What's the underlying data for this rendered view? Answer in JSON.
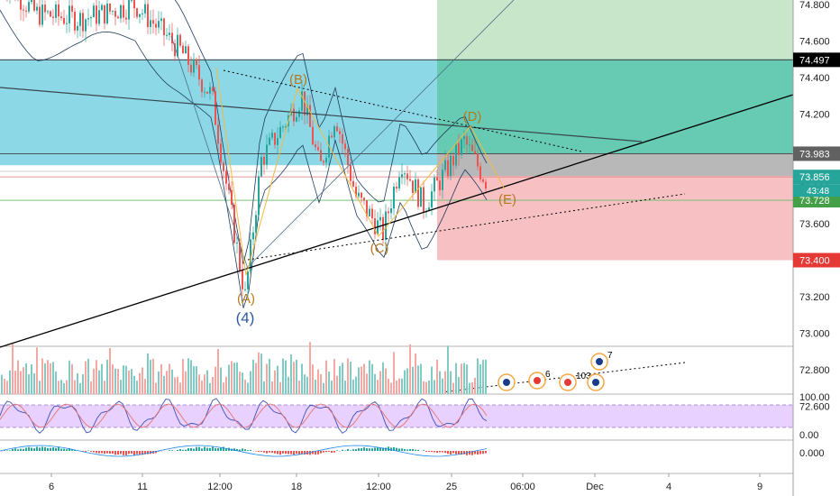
{
  "chart_data": {
    "type": "candlestick",
    "title": "",
    "xlabel": "",
    "ylabel": "",
    "ylim": [
      72.4,
      74.8
    ],
    "y_ticks": [
      "74.800",
      "74.600",
      "74.400",
      "74.200",
      "74.000",
      "73.800",
      "73.600",
      "73.400",
      "73.200",
      "73.000",
      "72.800",
      "72.600"
    ],
    "x_ticks": [
      "6",
      "11",
      "12:00",
      "18",
      "12:00",
      "25",
      "06:00",
      "Dec",
      "4",
      "9"
    ],
    "price_labels": {
      "stop": "74.497",
      "level": "73.983",
      "last": "73.856",
      "countdown": "43:48",
      "entry": "73.728",
      "target": "73.400"
    },
    "wave_labels": [
      "(A)",
      "(4)",
      "(B)",
      "(C)",
      "(D)",
      "(E)"
    ],
    "wave_points": [
      {
        "label": "(A)",
        "date": "Nov 16",
        "price": 73.2
      },
      {
        "label": "(B)",
        "date": "Nov 18",
        "price": 74.35
      },
      {
        "label": "(C)",
        "date": "Nov 23",
        "price": 73.52
      },
      {
        "label": "(D)",
        "date": "Nov 26",
        "price": 74.08
      },
      {
        "label": "(E)",
        "date": "Nov 27",
        "price": 73.7
      }
    ],
    "zones": [
      {
        "name": "supply",
        "from": 73.92,
        "to": 74.5,
        "color": "#5bc8d9"
      },
      {
        "name": "profit",
        "from": 73.983,
        "to": 74.8,
        "color": "#9ad59a"
      },
      {
        "name": "loss",
        "from": 73.4,
        "to": 73.86,
        "color": "#f4a8ac"
      }
    ],
    "stoch_ticks": [
      "100.00",
      "0.00"
    ],
    "macd_ticks": [
      "0.000"
    ],
    "event_markers": [
      "6",
      "103",
      "7"
    ],
    "colors": {
      "up": "#26a69a",
      "down": "#ef5350",
      "wave": "#b7791f",
      "wave_secondary": "#2f5a9e"
    }
  }
}
